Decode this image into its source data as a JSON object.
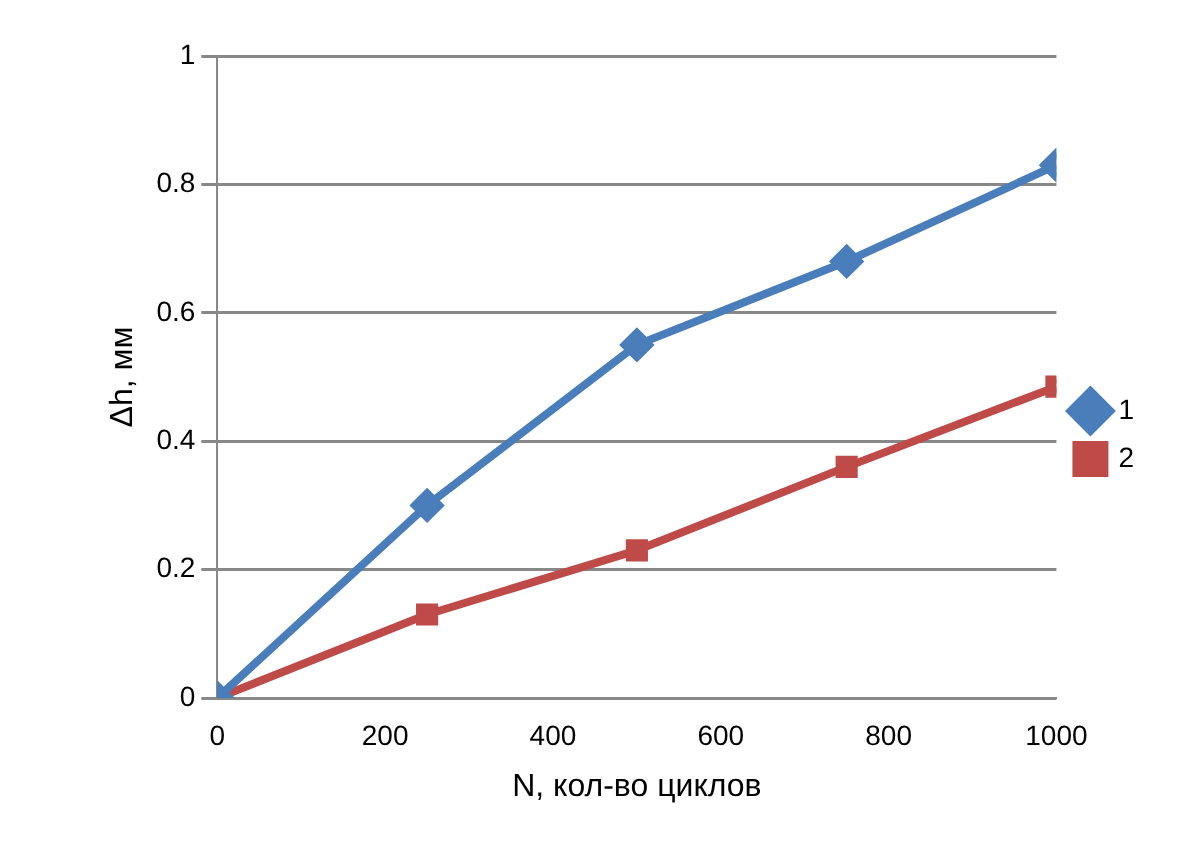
{
  "chart_data": {
    "type": "line",
    "xlabel": "N, кол-во циклов",
    "ylabel": "Δh, мм",
    "x": [
      0,
      250,
      500,
      750,
      1000
    ],
    "series": [
      {
        "name": "1",
        "color": "#4a7ebb",
        "marker": "diamond",
        "values": [
          0,
          0.3,
          0.55,
          0.68,
          0.83
        ]
      },
      {
        "name": "2",
        "color": "#be4b48",
        "marker": "square",
        "values": [
          0,
          0.13,
          0.23,
          0.36,
          0.485
        ]
      }
    ],
    "xlim": [
      0,
      1000
    ],
    "xticks": [
      0,
      200,
      400,
      600,
      800,
      1000
    ],
    "ylim": [
      0,
      1
    ],
    "yticks": [
      0,
      0.2,
      0.4,
      0.6,
      0.8,
      1
    ],
    "grid": "y",
    "legend": "right",
    "line_style": "solid"
  }
}
